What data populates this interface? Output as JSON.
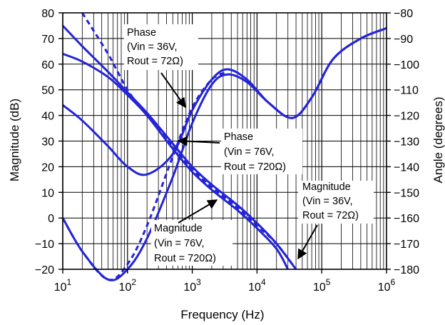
{
  "chart_data": {
    "type": "line",
    "title": "",
    "xlabel": "Frequency (Hz)",
    "ylabel_left": "Magnitude (dB)",
    "ylabel_right": "Angle (degrees)",
    "x_scale": "log",
    "xlim": [
      10,
      1000000
    ],
    "ylim_left": [
      -20,
      80
    ],
    "ylim_right": [
      -180,
      -80
    ],
    "grid": true,
    "x_ticks": [
      {
        "base": "10",
        "exp": "1"
      },
      {
        "base": "10",
        "exp": "2"
      },
      {
        "base": "10",
        "exp": "3"
      },
      {
        "base": "10",
        "exp": "4"
      },
      {
        "base": "10",
        "exp": "5"
      },
      {
        "base": "10",
        "exp": "6"
      }
    ],
    "y_ticks_left": [
      "80",
      "70",
      "60",
      "50",
      "40",
      "30",
      "20",
      "10",
      "0",
      "−10",
      "−20"
    ],
    "y_ticks_right": [
      "−80",
      "−90",
      "−100",
      "−110",
      "−120",
      "−130",
      "−140",
      "−150",
      "−160",
      "−170",
      "−180"
    ],
    "line_color": "#2424d8",
    "series": [
      {
        "axis": "left",
        "style": "solid",
        "points": [
          [
            10,
            75
          ],
          [
            20,
            67
          ],
          [
            50,
            57
          ],
          [
            100,
            49
          ],
          [
            200,
            41
          ],
          [
            500,
            29
          ],
          [
            1000,
            20
          ],
          [
            2000,
            13
          ],
          [
            5000,
            5
          ],
          [
            10000,
            -2
          ],
          [
            20000,
            -10
          ],
          [
            40000,
            -20
          ]
        ]
      },
      {
        "axis": "left",
        "style": "solid",
        "points": [
          [
            10,
            64
          ],
          [
            20,
            61
          ],
          [
            50,
            55
          ],
          [
            100,
            48
          ],
          [
            200,
            40
          ],
          [
            500,
            27
          ],
          [
            1000,
            18
          ],
          [
            2000,
            11
          ],
          [
            5000,
            3
          ],
          [
            10000,
            -4
          ],
          [
            20000,
            -12
          ],
          [
            30000,
            -20
          ]
        ]
      },
      {
        "axis": "right",
        "style": "solid",
        "points": [
          [
            10,
            -160
          ],
          [
            20,
            -173
          ],
          [
            50,
            -184
          ],
          [
            100,
            -180
          ],
          [
            200,
            -168
          ],
          [
            500,
            -144
          ],
          [
            1000,
            -123
          ],
          [
            2000,
            -108
          ],
          [
            3500,
            -104
          ],
          [
            7000,
            -107
          ],
          [
            15000,
            -115
          ],
          [
            35000,
            -121
          ],
          [
            70000,
            -113
          ],
          [
            150000,
            -98
          ],
          [
            400000,
            -90
          ],
          [
            1000000,
            -86
          ]
        ]
      },
      {
        "axis": "right",
        "style": "solid",
        "points": [
          [
            10,
            -116
          ],
          [
            20,
            -122
          ],
          [
            50,
            -132
          ],
          [
            100,
            -140
          ],
          [
            200,
            -143
          ],
          [
            500,
            -135
          ],
          [
            1000,
            -118
          ],
          [
            2000,
            -106
          ],
          [
            3500,
            -102
          ],
          [
            7000,
            -106
          ],
          [
            15000,
            -115
          ],
          [
            35000,
            -121
          ],
          [
            70000,
            -113
          ],
          [
            150000,
            -98
          ],
          [
            400000,
            -90
          ],
          [
            1000000,
            -86
          ]
        ]
      },
      {
        "axis": "right",
        "style": "dashed",
        "points": [
          [
            10,
            -160
          ],
          [
            20,
            -173
          ],
          [
            50,
            -184
          ],
          [
            100,
            -178
          ],
          [
            200,
            -163
          ],
          [
            500,
            -136
          ],
          [
            1000,
            -117
          ],
          [
            2000,
            -106
          ],
          [
            3500,
            -103
          ]
        ]
      },
      {
        "axis": "left",
        "style": "dashed",
        "points": [
          [
            20,
            80
          ],
          [
            50,
            64
          ],
          [
            100,
            50
          ],
          [
            200,
            40
          ],
          [
            500,
            28
          ],
          [
            1000,
            19
          ],
          [
            2000,
            12
          ],
          [
            5000,
            4
          ],
          [
            10000,
            -3
          ],
          [
            20000,
            -10
          ],
          [
            40000,
            -20
          ]
        ]
      }
    ],
    "annotations": [
      {
        "lines": [
          "Phase",
          "(Vin = 36V,",
          "Rout = 72Ω)"
        ]
      },
      {
        "lines": [
          "Phase",
          "(Vin = 76V,",
          "Rout = 720Ω)"
        ]
      },
      {
        "lines": [
          "Magnitude",
          "(Vin = 36V,",
          "Rout = 72Ω)"
        ]
      },
      {
        "lines": [
          "Magnitude",
          "(Vin = 76V,",
          "Rout = 720Ω)"
        ]
      }
    ]
  }
}
